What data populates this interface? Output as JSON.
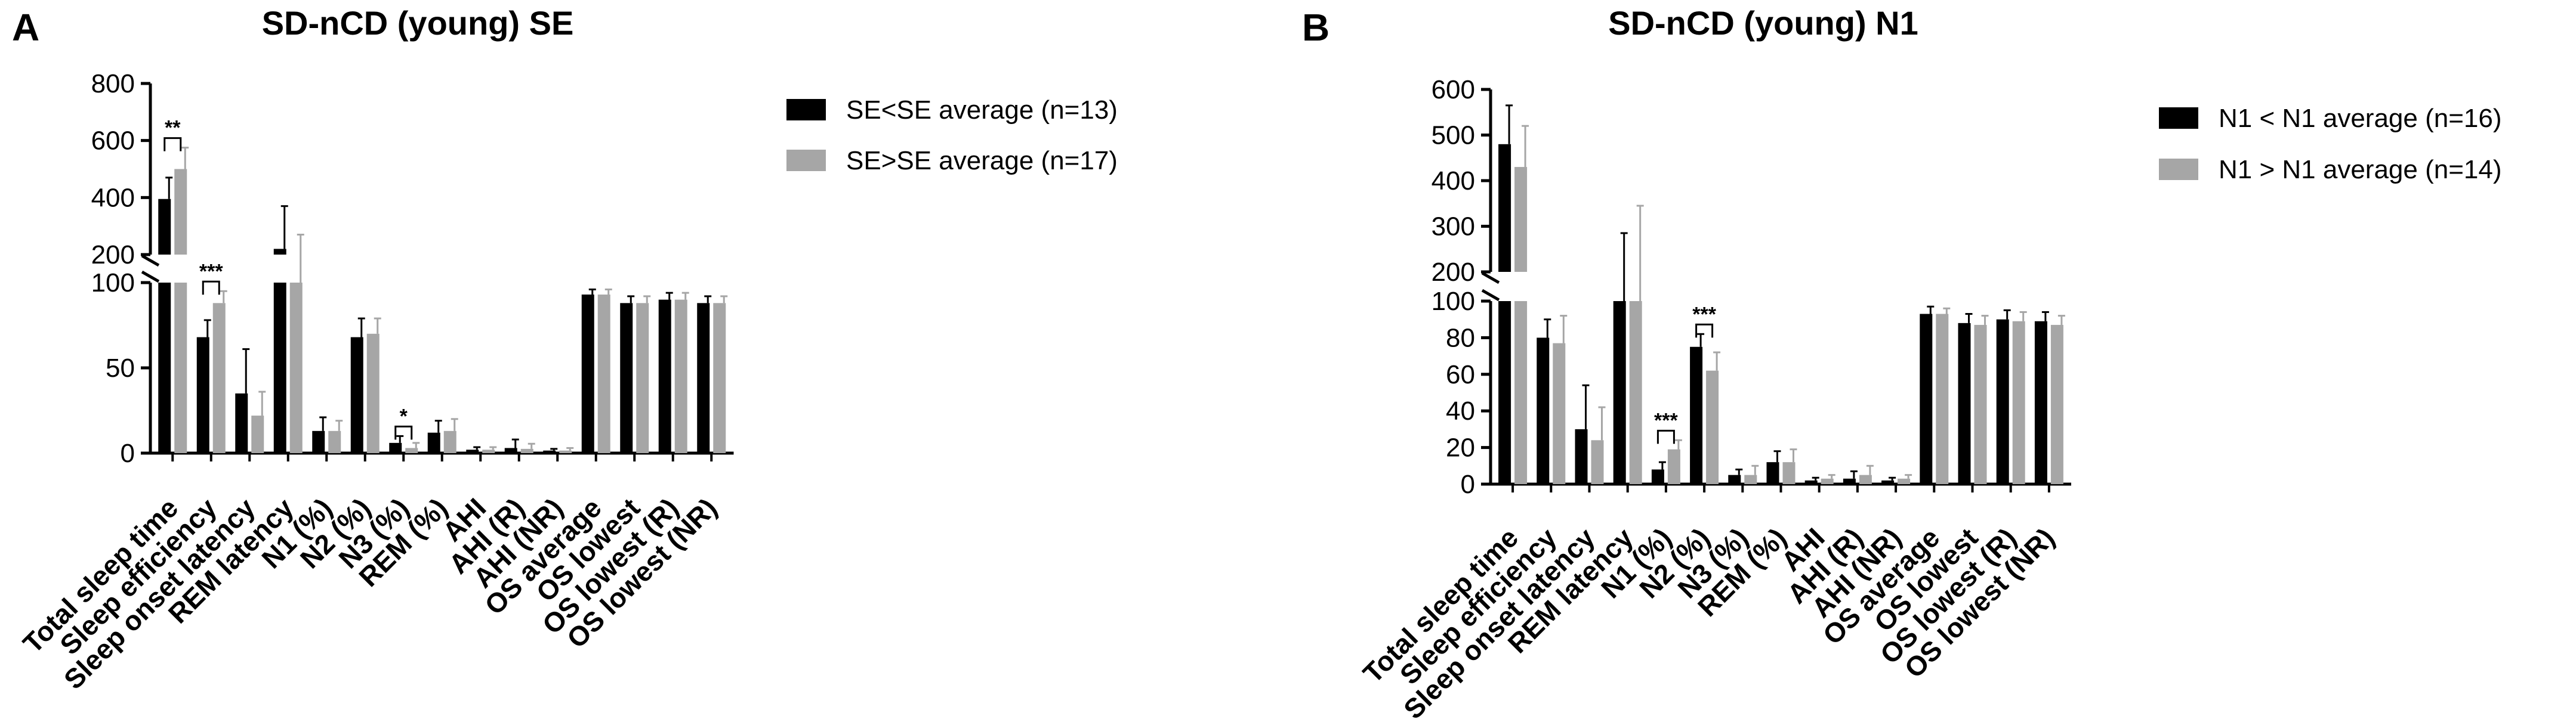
{
  "colors": {
    "black_series": "#000000",
    "grey_series": "#a6a6a6",
    "axis": "#000000"
  },
  "chart_data": [
    {
      "panel": "A",
      "type": "bar",
      "title": "SD-nCD (young) SE",
      "xlabel": "",
      "ylabel": "",
      "axis_break": {
        "lower_ylim": [
          0,
          100
        ],
        "lower_ticks": [
          "0",
          "50",
          "100"
        ],
        "upper_ylim": [
          200,
          800
        ],
        "upper_ticks": [
          "200",
          "400",
          "600",
          "800"
        ]
      },
      "categories": [
        "Total sleep time",
        "Sleep efficiency",
        "Sleep onset latency",
        "REM latency",
        "N1 (%)",
        "N2 (%)",
        "N3 (%)",
        "REM (%)",
        "AHI",
        "AHI (R)",
        "AHI (NR)",
        "OS average",
        "OS lowest",
        "OS lowest (R)",
        "OS lowest (NR)"
      ],
      "series": [
        {
          "name": "SE<SE average (n=13)",
          "color": "#000000",
          "values": [
            395,
            68,
            35,
            220,
            13,
            68,
            6,
            12,
            2,
            3,
            1.5,
            93,
            88,
            90,
            88
          ],
          "errors": [
            75,
            10,
            26,
            150,
            8,
            11,
            4,
            7,
            1.5,
            5,
            1,
            3,
            4,
            4,
            4
          ]
        },
        {
          "name": "SE>SE average (n=17)",
          "color": "#a6a6a6",
          "values": [
            500,
            88,
            22,
            100,
            13,
            70,
            3,
            13,
            2,
            2.5,
            1.5,
            93,
            88,
            90,
            88
          ],
          "errors": [
            75,
            7,
            14,
            170,
            6,
            9,
            3,
            7,
            1.5,
            3,
            1.5,
            3,
            4,
            4,
            4
          ]
        }
      ],
      "significance": [
        {
          "category": "Total sleep time",
          "label": "**"
        },
        {
          "category": "Sleep efficiency",
          "label": "***"
        },
        {
          "category": "N3 (%)",
          "label": "*"
        }
      ]
    },
    {
      "panel": "B",
      "type": "bar",
      "title": "SD-nCD (young) N1",
      "xlabel": "",
      "ylabel": "",
      "axis_break": {
        "lower_ylim": [
          0,
          100
        ],
        "lower_ticks": [
          "0",
          "20",
          "40",
          "60",
          "80",
          "100"
        ],
        "upper_ylim": [
          200,
          600
        ],
        "upper_ticks": [
          "200",
          "300",
          "400",
          "500",
          "600"
        ]
      },
      "categories": [
        "Total sleep time",
        "Sleep efficiency",
        "Sleep onset latency",
        "REM latency",
        "N1 (%)",
        "N2 (%)",
        "N3 (%)",
        "REM (%)",
        "AHI",
        "AHI (R)",
        "AHI (NR)",
        "OS average",
        "OS lowest",
        "OS lowest (R)",
        "OS lowest (NR)"
      ],
      "series": [
        {
          "name": "N1 < N1 average (n=16)",
          "color": "#000000",
          "values": [
            480,
            80,
            30,
            100,
            8,
            75,
            5,
            12,
            2,
            3,
            2,
            93,
            88,
            90,
            89
          ],
          "errors": [
            85,
            10,
            24,
            185,
            4,
            7,
            3,
            6,
            1.5,
            4,
            1.5,
            4,
            5,
            5,
            5
          ]
        },
        {
          "name": "N1 > N1 average (n=14)",
          "color": "#a6a6a6",
          "values": [
            430,
            77,
            24,
            100,
            19,
            62,
            5,
            12,
            3,
            5,
            3,
            93,
            87,
            89,
            87
          ],
          "errors": [
            90,
            15,
            18,
            245,
            5,
            10,
            5,
            7,
            2,
            5,
            2,
            3,
            5,
            5,
            5
          ]
        }
      ],
      "significance": [
        {
          "category": "N1 (%)",
          "label": "***"
        },
        {
          "category": "N2 (%)",
          "label": "***"
        }
      ]
    }
  ]
}
